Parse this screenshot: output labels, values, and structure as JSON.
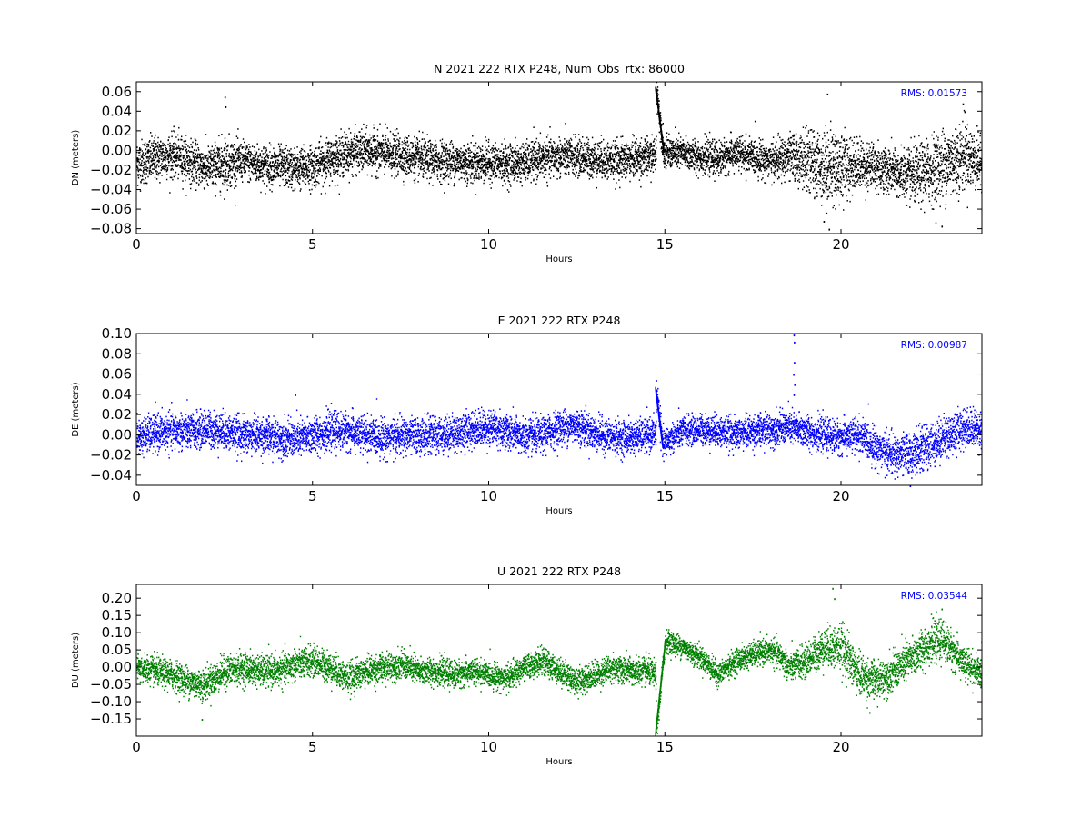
{
  "chart_data": [
    {
      "type": "scatter",
      "title": "N 2021 222 RTX  P248, Num_Obs_rtx: 86000",
      "xlabel": "Hours",
      "ylabel": "DN (meters)",
      "xlim": [
        0,
        24
      ],
      "ylim": [
        -0.085,
        0.07
      ],
      "xticks": [
        0,
        5,
        10,
        15,
        20
      ],
      "yticks": [
        -0.08,
        -0.06,
        -0.04,
        -0.02,
        0.0,
        0.02,
        0.04,
        0.06
      ],
      "ytick_labels": [
        "−0.08",
        "−0.06",
        "−0.04",
        "−0.02",
        "0.00",
        "0.02",
        "0.04",
        "0.06"
      ],
      "rms_label": "RMS:  0.01573",
      "color": "#000000",
      "grid": false,
      "trend": [
        [
          0,
          -0.012
        ],
        [
          0.5,
          -0.008
        ],
        [
          1,
          -0.004
        ],
        [
          1.5,
          -0.01
        ],
        [
          2,
          -0.018
        ],
        [
          2.5,
          -0.012
        ],
        [
          3,
          -0.01
        ],
        [
          3.5,
          -0.014
        ],
        [
          4,
          -0.016
        ],
        [
          4.5,
          -0.018
        ],
        [
          5,
          -0.016
        ],
        [
          5.5,
          -0.008
        ],
        [
          6,
          -0.002
        ],
        [
          6.5,
          0.0
        ],
        [
          7,
          -0.002
        ],
        [
          7.5,
          -0.004
        ],
        [
          8,
          -0.008
        ],
        [
          8.5,
          -0.01
        ],
        [
          9,
          -0.01
        ],
        [
          9.5,
          -0.012
        ],
        [
          10,
          -0.012
        ],
        [
          10.5,
          -0.013
        ],
        [
          11,
          -0.012
        ],
        [
          11.5,
          -0.008
        ],
        [
          12,
          -0.006
        ],
        [
          12.5,
          -0.006
        ],
        [
          13,
          -0.008
        ],
        [
          13.5,
          -0.01
        ],
        [
          14,
          -0.008
        ],
        [
          14.5,
          -0.006
        ],
        [
          14.74,
          -0.004
        ],
        [
          14.75,
          0.065
        ],
        [
          14.95,
          0.0
        ],
        [
          15,
          -0.002
        ],
        [
          15.5,
          -0.002
        ],
        [
          16,
          -0.006
        ],
        [
          16.5,
          -0.008
        ],
        [
          17,
          -0.002
        ],
        [
          17.5,
          -0.006
        ],
        [
          18,
          -0.01
        ],
        [
          18.3,
          -0.008
        ],
        [
          18.6,
          -0.006
        ],
        [
          19,
          -0.01
        ],
        [
          19.5,
          -0.016
        ],
        [
          20,
          -0.016
        ],
        [
          20.5,
          -0.014
        ],
        [
          21,
          -0.016
        ],
        [
          21.5,
          -0.022
        ],
        [
          22,
          -0.026
        ],
        [
          22.5,
          -0.02
        ],
        [
          23,
          -0.012
        ],
        [
          23.5,
          -0.004
        ],
        [
          24,
          -0.014
        ]
      ],
      "spread": [
        [
          0,
          0.026
        ],
        [
          2,
          0.024
        ],
        [
          2.5,
          0.03
        ],
        [
          3,
          0.022
        ],
        [
          5,
          0.024
        ],
        [
          10,
          0.022
        ],
        [
          14.5,
          0.022
        ],
        [
          15,
          0.018
        ],
        [
          18,
          0.02
        ],
        [
          19,
          0.032
        ],
        [
          19.7,
          0.045
        ],
        [
          20.5,
          0.028
        ],
        [
          21.5,
          0.026
        ],
        [
          22.5,
          0.038
        ],
        [
          23.2,
          0.042
        ],
        [
          24,
          0.028
        ]
      ],
      "spikes": [
        {
          "x": 2.5,
          "y": 0.055
        },
        {
          "x": 2.52,
          "y": 0.045
        },
        {
          "x": 19.6,
          "y": 0.058
        },
        {
          "x": 19.65,
          "y": -0.08
        },
        {
          "x": 22.85,
          "y": -0.077
        },
        {
          "x": 23.45,
          "y": 0.048
        },
        {
          "x": 23.5,
          "y": 0.04
        },
        {
          "x": 19.5,
          "y": -0.072
        }
      ]
    },
    {
      "type": "scatter",
      "title": "E 2021 222 RTX  P248",
      "xlabel": "Hours",
      "ylabel": "DE (meters)",
      "xlim": [
        0,
        24
      ],
      "ylim": [
        -0.05,
        0.1
      ],
      "xticks": [
        0,
        5,
        10,
        15,
        20
      ],
      "yticks": [
        -0.04,
        -0.02,
        0.0,
        0.02,
        0.04,
        0.06,
        0.08,
        0.1
      ],
      "ytick_labels": [
        "−0.04",
        "−0.02",
        "0.00",
        "0.02",
        "0.04",
        "0.06",
        "0.08",
        "0.10"
      ],
      "rms_label": "RMS:  0.00987",
      "color": "#0000ff",
      "grid": false,
      "trend": [
        [
          0,
          -0.002
        ],
        [
          0.5,
          0.002
        ],
        [
          1,
          0.004
        ],
        [
          1.5,
          0.004
        ],
        [
          2,
          0.006
        ],
        [
          2.5,
          0.004
        ],
        [
          3,
          0.0
        ],
        [
          3.5,
          0.0
        ],
        [
          4,
          -0.002
        ],
        [
          4.5,
          -0.004
        ],
        [
          5,
          0.0
        ],
        [
          5.5,
          0.004
        ],
        [
          6,
          0.004
        ],
        [
          6.5,
          0.0
        ],
        [
          7,
          -0.002
        ],
        [
          7.5,
          -0.001
        ],
        [
          8,
          0.0
        ],
        [
          8.5,
          0.0
        ],
        [
          9,
          0.002
        ],
        [
          9.5,
          0.006
        ],
        [
          10,
          0.008
        ],
        [
          10.5,
          0.004
        ],
        [
          11,
          -0.002
        ],
        [
          11.5,
          0.0
        ],
        [
          12,
          0.008
        ],
        [
          12.5,
          0.01
        ],
        [
          13,
          0.002
        ],
        [
          13.5,
          -0.002
        ],
        [
          14,
          -0.002
        ],
        [
          14.5,
          0.0
        ],
        [
          14.74,
          0.002
        ],
        [
          14.75,
          0.046
        ],
        [
          14.93,
          -0.012
        ],
        [
          15,
          -0.006
        ],
        [
          15.5,
          0.004
        ],
        [
          16,
          0.006
        ],
        [
          16.5,
          0.004
        ],
        [
          17,
          0.002
        ],
        [
          17.5,
          0.004
        ],
        [
          18,
          0.006
        ],
        [
          18.5,
          0.008
        ],
        [
          19,
          0.004
        ],
        [
          19.5,
          0.0
        ],
        [
          20,
          -0.002
        ],
        [
          20.5,
          0.0
        ],
        [
          21,
          -0.012
        ],
        [
          21.5,
          -0.02
        ],
        [
          22,
          -0.018
        ],
        [
          22.5,
          -0.01
        ],
        [
          23,
          0.0
        ],
        [
          23.5,
          0.008
        ],
        [
          24,
          0.006
        ]
      ],
      "spread": [
        [
          0,
          0.02
        ],
        [
          5,
          0.02
        ],
        [
          10,
          0.02
        ],
        [
          14.5,
          0.018
        ],
        [
          15,
          0.016
        ],
        [
          18,
          0.018
        ],
        [
          20,
          0.018
        ],
        [
          21.5,
          0.022
        ],
        [
          22.5,
          0.024
        ],
        [
          24,
          0.02
        ]
      ],
      "spikes": [
        {
          "x": 18.65,
          "y": 0.099
        },
        {
          "x": 18.66,
          "y": 0.092
        },
        {
          "x": 18.66,
          "y": 0.072
        },
        {
          "x": 18.64,
          "y": 0.06
        },
        {
          "x": 18.67,
          "y": 0.05
        },
        {
          "x": 18.65,
          "y": 0.04
        },
        {
          "x": 4.5,
          "y": 0.04
        },
        {
          "x": 21.95,
          "y": -0.05
        }
      ]
    },
    {
      "type": "scatter",
      "title": "U 2021 222 RTX  P248",
      "xlabel": "Hours",
      "ylabel": "DU (meters)",
      "xlim": [
        0,
        24
      ],
      "ylim": [
        -0.2,
        0.24
      ],
      "xticks": [
        0,
        5,
        10,
        15,
        20
      ],
      "yticks": [
        -0.15,
        -0.1,
        -0.05,
        0.0,
        0.05,
        0.1,
        0.15,
        0.2
      ],
      "ytick_labels": [
        "−0.15",
        "−0.10",
        "−0.05",
        "0.00",
        "0.05",
        "0.10",
        "0.15",
        "0.20"
      ],
      "rms_label": "RMS:  0.03544",
      "color": "#008000",
      "grid": false,
      "trend": [
        [
          0,
          0.0
        ],
        [
          0.5,
          -0.01
        ],
        [
          1,
          -0.02
        ],
        [
          1.5,
          -0.04
        ],
        [
          1.9,
          -0.05
        ],
        [
          2.5,
          -0.01
        ],
        [
          3,
          0.0
        ],
        [
          3.5,
          -0.01
        ],
        [
          4,
          -0.01
        ],
        [
          4.5,
          0.01
        ],
        [
          5,
          0.02
        ],
        [
          5.5,
          0.0
        ],
        [
          6,
          -0.03
        ],
        [
          6.5,
          -0.01
        ],
        [
          7,
          0.0
        ],
        [
          7.5,
          0.01
        ],
        [
          8,
          -0.01
        ],
        [
          8.5,
          -0.01
        ],
        [
          9,
          -0.02
        ],
        [
          9.5,
          -0.01
        ],
        [
          10,
          -0.02
        ],
        [
          10.5,
          -0.03
        ],
        [
          11,
          0.0
        ],
        [
          11.5,
          0.02
        ],
        [
          12,
          -0.01
        ],
        [
          12.5,
          -0.04
        ],
        [
          13,
          -0.02
        ],
        [
          13.5,
          0.0
        ],
        [
          14,
          -0.01
        ],
        [
          14.5,
          -0.01
        ],
        [
          14.74,
          -0.02
        ],
        [
          14.75,
          -0.19
        ],
        [
          15,
          0.08
        ],
        [
          15.5,
          0.06
        ],
        [
          16,
          0.03
        ],
        [
          16.5,
          -0.02
        ],
        [
          17,
          0.02
        ],
        [
          17.5,
          0.04
        ],
        [
          18,
          0.05
        ],
        [
          18.3,
          0.03
        ],
        [
          18.5,
          0.0
        ],
        [
          19,
          0.02
        ],
        [
          19.5,
          0.06
        ],
        [
          20,
          0.06
        ],
        [
          20.5,
          -0.02
        ],
        [
          21,
          -0.04
        ],
        [
          21.5,
          -0.01
        ],
        [
          22,
          0.03
        ],
        [
          22.5,
          0.07
        ],
        [
          22.9,
          0.08
        ],
        [
          23.5,
          0.01
        ],
        [
          24,
          -0.02
        ]
      ],
      "spread": [
        [
          0,
          0.045
        ],
        [
          2,
          0.05
        ],
        [
          5,
          0.05
        ],
        [
          10,
          0.04
        ],
        [
          14.5,
          0.045
        ],
        [
          15,
          0.035
        ],
        [
          18,
          0.04
        ],
        [
          19.5,
          0.06
        ],
        [
          20,
          0.075
        ],
        [
          21,
          0.06
        ],
        [
          22.5,
          0.065
        ],
        [
          24,
          0.05
        ]
      ],
      "spikes": [
        {
          "x": 19.75,
          "y": 0.23
        },
        {
          "x": 19.8,
          "y": 0.2
        },
        {
          "x": 1.85,
          "y": -0.15
        },
        {
          "x": 20.8,
          "y": -0.13
        },
        {
          "x": 22.85,
          "y": 0.17
        }
      ]
    }
  ]
}
